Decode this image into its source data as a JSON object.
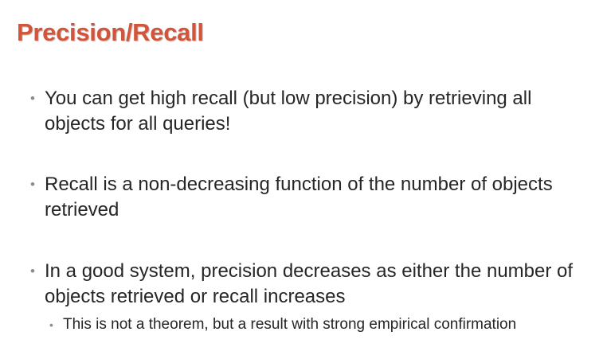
{
  "slide": {
    "title": "Precision/Recall",
    "bullets": [
      {
        "marker": "•",
        "text": "You can get high recall (but low precision) by retrieving all objects for all queries!"
      },
      {
        "marker": "•",
        "text": "Recall is a non-decreasing function of the number of objects retrieved"
      },
      {
        "marker": "•",
        "text": "In a good system, precision decreases as either the number of objects retrieved or recall increases"
      }
    ],
    "sub_bullets": [
      {
        "marker": "•",
        "text": "This is not a theorem, but a result with strong empirical confirmation"
      }
    ],
    "colors": {
      "title": "#d2553b",
      "body_text": "#262626",
      "bullet_marker": "#8c8c8c",
      "background": "#ffffff"
    }
  }
}
